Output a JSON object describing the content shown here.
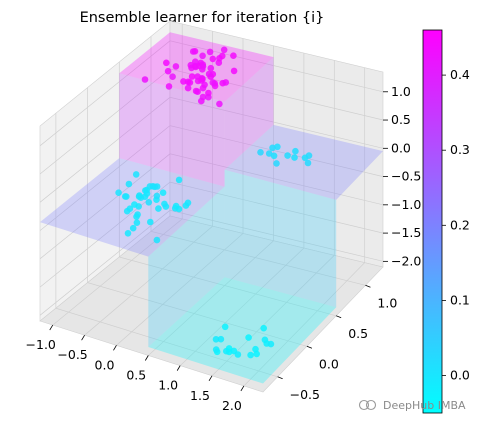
{
  "chart_data": {
    "type": "scatter",
    "title": "Ensemble learner for iteration {i}",
    "x_ticks": [
      "−1.0",
      "−0.5",
      "0.0",
      "0.5",
      "1.0",
      "1.5",
      "2.0"
    ],
    "y_ticks": [
      "−0.5",
      "0.0",
      "0.5",
      "1.0"
    ],
    "z_ticks": [
      "−2.0",
      "−1.5",
      "−1.0",
      "−0.5",
      "0.0",
      "0.5",
      "1.0"
    ],
    "x_range": [
      -1.2,
      2.3
    ],
    "y_range": [
      -0.75,
      1.3
    ],
    "z_range": [
      -2.1,
      1.35
    ],
    "colorbar": {
      "colormap": "cool",
      "range": [
        -0.05,
        0.46
      ],
      "ticks": [
        "0.0",
        "0.1",
        "0.2",
        "0.3",
        "0.4"
      ],
      "low_color": "#00ffff",
      "high_color": "#ff00ff"
    },
    "surface_levels": [
      {
        "region": "x<0.5, y>0.5",
        "z": 1.15,
        "value": 0.44
      },
      {
        "region": "x<0.5, y<0.5",
        "z": -0.35,
        "value": 0.2
      },
      {
        "region": "x>0.5, y>0.5",
        "z": -0.05,
        "value": 0.2
      },
      {
        "region": "x>0.5, y<0.5",
        "z": -1.95,
        "value": -0.03
      }
    ],
    "clusters": [
      {
        "name": "upper-left",
        "x_mean": -0.3,
        "y_mean": 0.9,
        "z_mean": 1.0,
        "count": 55,
        "value": 0.43
      },
      {
        "name": "lower-left",
        "x_mean": 0.0,
        "y_mean": -0.2,
        "z_mean": -0.1,
        "count": 40,
        "value": 0.0
      },
      {
        "name": "lower-right",
        "x_mean": 1.4,
        "y_mean": -0.3,
        "z_mean": -2.0,
        "count": 18,
        "value": -0.02
      },
      {
        "name": "upper-right",
        "x_mean": 1.1,
        "y_mean": 0.85,
        "z_mean": 0.0,
        "count": 12,
        "value": 0.02
      }
    ]
  },
  "watermark": "DeepHub IMBA"
}
